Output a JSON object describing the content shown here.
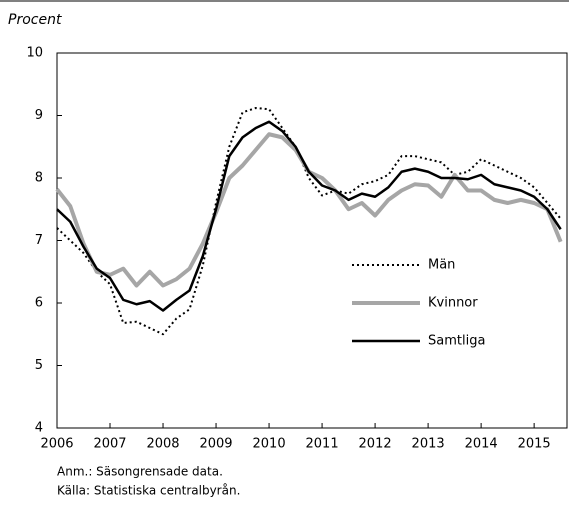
{
  "chart_data": {
    "type": "line",
    "ylabel": "Procent",
    "notes": [
      "Anm.: Säsongrensade data.",
      "Källa: Statistiska centralbyrån."
    ],
    "x": [
      2006,
      2006.25,
      2006.5,
      2006.75,
      2007,
      2007.25,
      2007.5,
      2007.75,
      2008,
      2008.25,
      2008.5,
      2008.75,
      2009,
      2009.25,
      2009.5,
      2009.75,
      2010,
      2010.25,
      2010.5,
      2010.75,
      2011,
      2011.25,
      2011.5,
      2011.75,
      2012,
      2012.25,
      2012.5,
      2012.75,
      2013,
      2013.25,
      2013.5,
      2013.75,
      2014,
      2014.25,
      2014.5,
      2014.75,
      2015,
      2015.25,
      2015.5
    ],
    "series": [
      {
        "name": "Män",
        "color": "#000000",
        "dash": "dotted",
        "values": [
          7.2,
          7.0,
          6.8,
          6.5,
          6.3,
          5.68,
          5.7,
          5.6,
          5.5,
          5.75,
          5.9,
          6.6,
          7.6,
          8.5,
          9.05,
          9.12,
          9.1,
          8.8,
          8.5,
          8.0,
          7.72,
          7.8,
          7.75,
          7.9,
          7.95,
          8.05,
          8.35,
          8.35,
          8.3,
          8.25,
          8.05,
          8.1,
          8.3,
          8.2,
          8.1,
          8.0,
          7.85,
          7.6,
          7.35
        ]
      },
      {
        "name": "Kvinnor",
        "color": "#a6a6a6",
        "dash": "solid",
        "values": [
          7.82,
          7.55,
          6.95,
          6.5,
          6.45,
          6.55,
          6.28,
          6.5,
          6.28,
          6.38,
          6.55,
          6.95,
          7.45,
          8.0,
          8.2,
          8.45,
          8.7,
          8.65,
          8.45,
          8.1,
          8.0,
          7.8,
          7.5,
          7.6,
          7.4,
          7.65,
          7.8,
          7.9,
          7.88,
          7.7,
          8.05,
          7.8,
          7.8,
          7.65,
          7.6,
          7.65,
          7.6,
          7.5,
          6.98
        ]
      },
      {
        "name": "Samtliga",
        "color": "#000000",
        "dash": "solid",
        "values": [
          7.5,
          7.3,
          6.9,
          6.55,
          6.4,
          6.05,
          5.98,
          6.03,
          5.88,
          6.05,
          6.2,
          6.75,
          7.5,
          8.35,
          8.65,
          8.8,
          8.9,
          8.75,
          8.5,
          8.1,
          7.88,
          7.8,
          7.65,
          7.75,
          7.7,
          7.85,
          8.1,
          8.15,
          8.1,
          8.0,
          8.0,
          7.98,
          8.05,
          7.9,
          7.85,
          7.8,
          7.7,
          7.5,
          7.18
        ]
      }
    ],
    "xlim": [
      2006,
      2015.62
    ],
    "xticks": [
      2006,
      2007,
      2008,
      2009,
      2010,
      2011,
      2012,
      2013,
      2014,
      2015
    ],
    "ylim": [
      4,
      10
    ],
    "yticks": [
      4,
      5,
      6,
      7,
      8,
      9,
      10
    ]
  }
}
